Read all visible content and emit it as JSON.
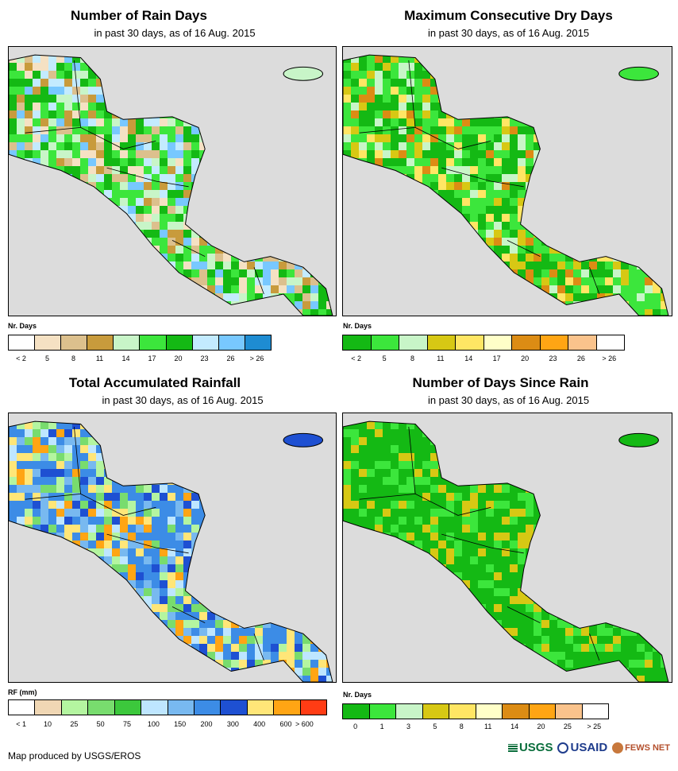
{
  "panels": [
    {
      "title": "Number of Rain Days",
      "subtitle": "in past 30 days, as of 16 Aug. 2015",
      "legend_title": "Nr. Days",
      "legend_colors": [
        "#ffffff",
        "#f5e1c3",
        "#dcc08d",
        "#c89b3c",
        "#c8f5c8",
        "#3ce63c",
        "#14b914",
        "#c3ebff",
        "#78c8ff",
        "#1e8cd2"
      ],
      "tick_labels": [
        "< 2",
        "5",
        "8",
        "11",
        "14",
        "17",
        "20",
        "23",
        "26",
        "> 26"
      ],
      "palette": [
        "#c89b3c",
        "#dcc08d",
        "#c8f5c8",
        "#3ce63c",
        "#14b914",
        "#14b914",
        "#3ce63c",
        "#c3ebff",
        "#78c8ff",
        "#f5e1c3"
      ]
    },
    {
      "title": "Maximum Consecutive Dry Days",
      "subtitle": "in past 30 days, as of 16 Aug. 2015",
      "legend_title": "Nr. Days",
      "legend_colors": [
        "#14b914",
        "#3ce63c",
        "#c8f5c8",
        "#d7c814",
        "#ffe664",
        "#ffffc8",
        "#dc8c14",
        "#ffa514",
        "#fac38c",
        "#ffffff"
      ],
      "tick_labels": [
        "< 2",
        "5",
        "8",
        "11",
        "14",
        "17",
        "20",
        "23",
        "26",
        "> 26"
      ],
      "palette": [
        "#14b914",
        "#3ce63c",
        "#3ce63c",
        "#c8f5c8",
        "#14b914",
        "#d7c814",
        "#ffe664",
        "#dc8c14",
        "#3ce63c",
        "#14b914"
      ]
    },
    {
      "title": "Total Accumulated Rainfall",
      "subtitle": "in past 30 days, as of 16 Aug. 2015",
      "legend_title": "RF (mm)",
      "legend_colors": [
        "#ffffff",
        "#f0d7b4",
        "#b4f5a0",
        "#78dc6e",
        "#3cc83c",
        "#bee6ff",
        "#78b9f0",
        "#3c8ce6",
        "#1e50d2",
        "#ffe678",
        "#ffa514",
        "#ff3c14"
      ],
      "tick_labels": [
        "< 1",
        "10",
        "25",
        "50",
        "75",
        "100",
        "150",
        "200",
        "300",
        "400",
        "600",
        "> 600"
      ],
      "palette": [
        "#3c8ce6",
        "#78b9f0",
        "#1e50d2",
        "#3c8ce6",
        "#b4f5a0",
        "#78dc6e",
        "#ffa514",
        "#ffe678",
        "#bee6ff",
        "#3c8ce6"
      ]
    },
    {
      "title": "Number of Days Since Rain",
      "subtitle": "in past 30 days, as of 16 Aug. 2015",
      "legend_title": "Nr. Days",
      "legend_colors": [
        "#14b914",
        "#3ce63c",
        "#c8f5c8",
        "#d7c814",
        "#ffe664",
        "#ffffc8",
        "#dc8c14",
        "#ffa514",
        "#fac38c",
        "#ffffff"
      ],
      "tick_labels": [
        "0",
        "1",
        "3",
        "5",
        "8",
        "11",
        "14",
        "20",
        "25",
        "> 25"
      ],
      "palette": [
        "#14b914",
        "#14b914",
        "#14b914",
        "#3ce63c",
        "#14b914",
        "#14b914",
        "#3ce63c",
        "#14b914",
        "#d7c814",
        "#14b914"
      ]
    }
  ],
  "credit": "Map produced by USGS/EROS",
  "logos": [
    "USGS",
    "USAID",
    "FEWS NET"
  ]
}
